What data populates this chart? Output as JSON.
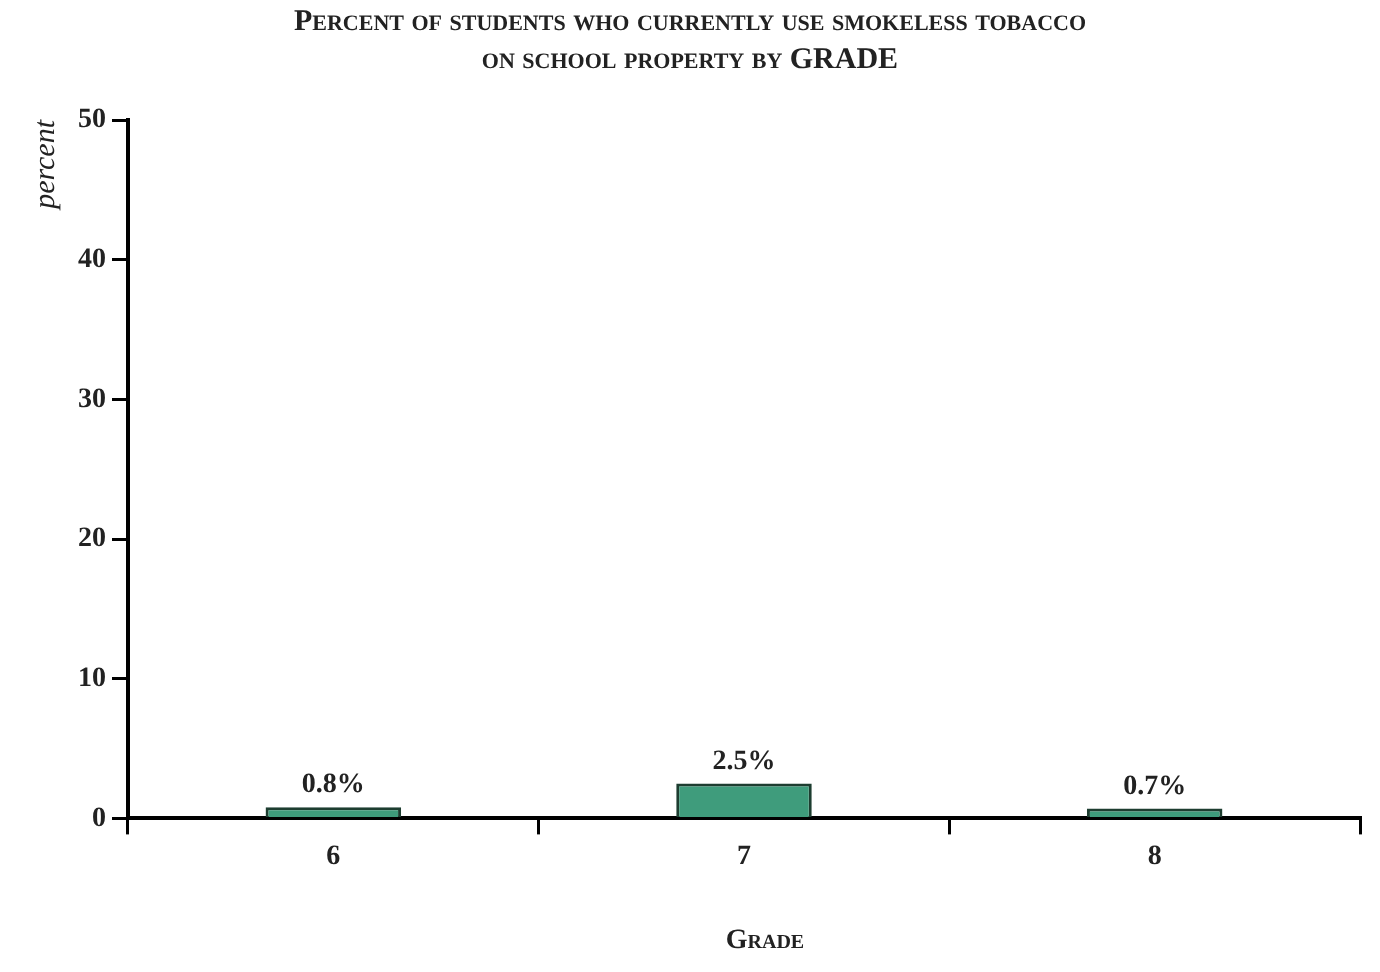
{
  "chart_data": {
    "type": "bar",
    "title": "Percent of students who currently use smokeless tobacco on school property by GRADE",
    "xlabel": "Grade",
    "ylabel": "percent",
    "categories": [
      "6",
      "7",
      "8"
    ],
    "values": [
      0.8,
      2.5,
      0.7
    ],
    "value_labels": [
      "0.8%",
      "2.5%",
      "0.7%"
    ],
    "color": "#3f9c7c",
    "ylim": [
      0,
      50
    ],
    "yticks": [
      0,
      10,
      20,
      30,
      40,
      50
    ],
    "grid": false,
    "legend": false
  }
}
